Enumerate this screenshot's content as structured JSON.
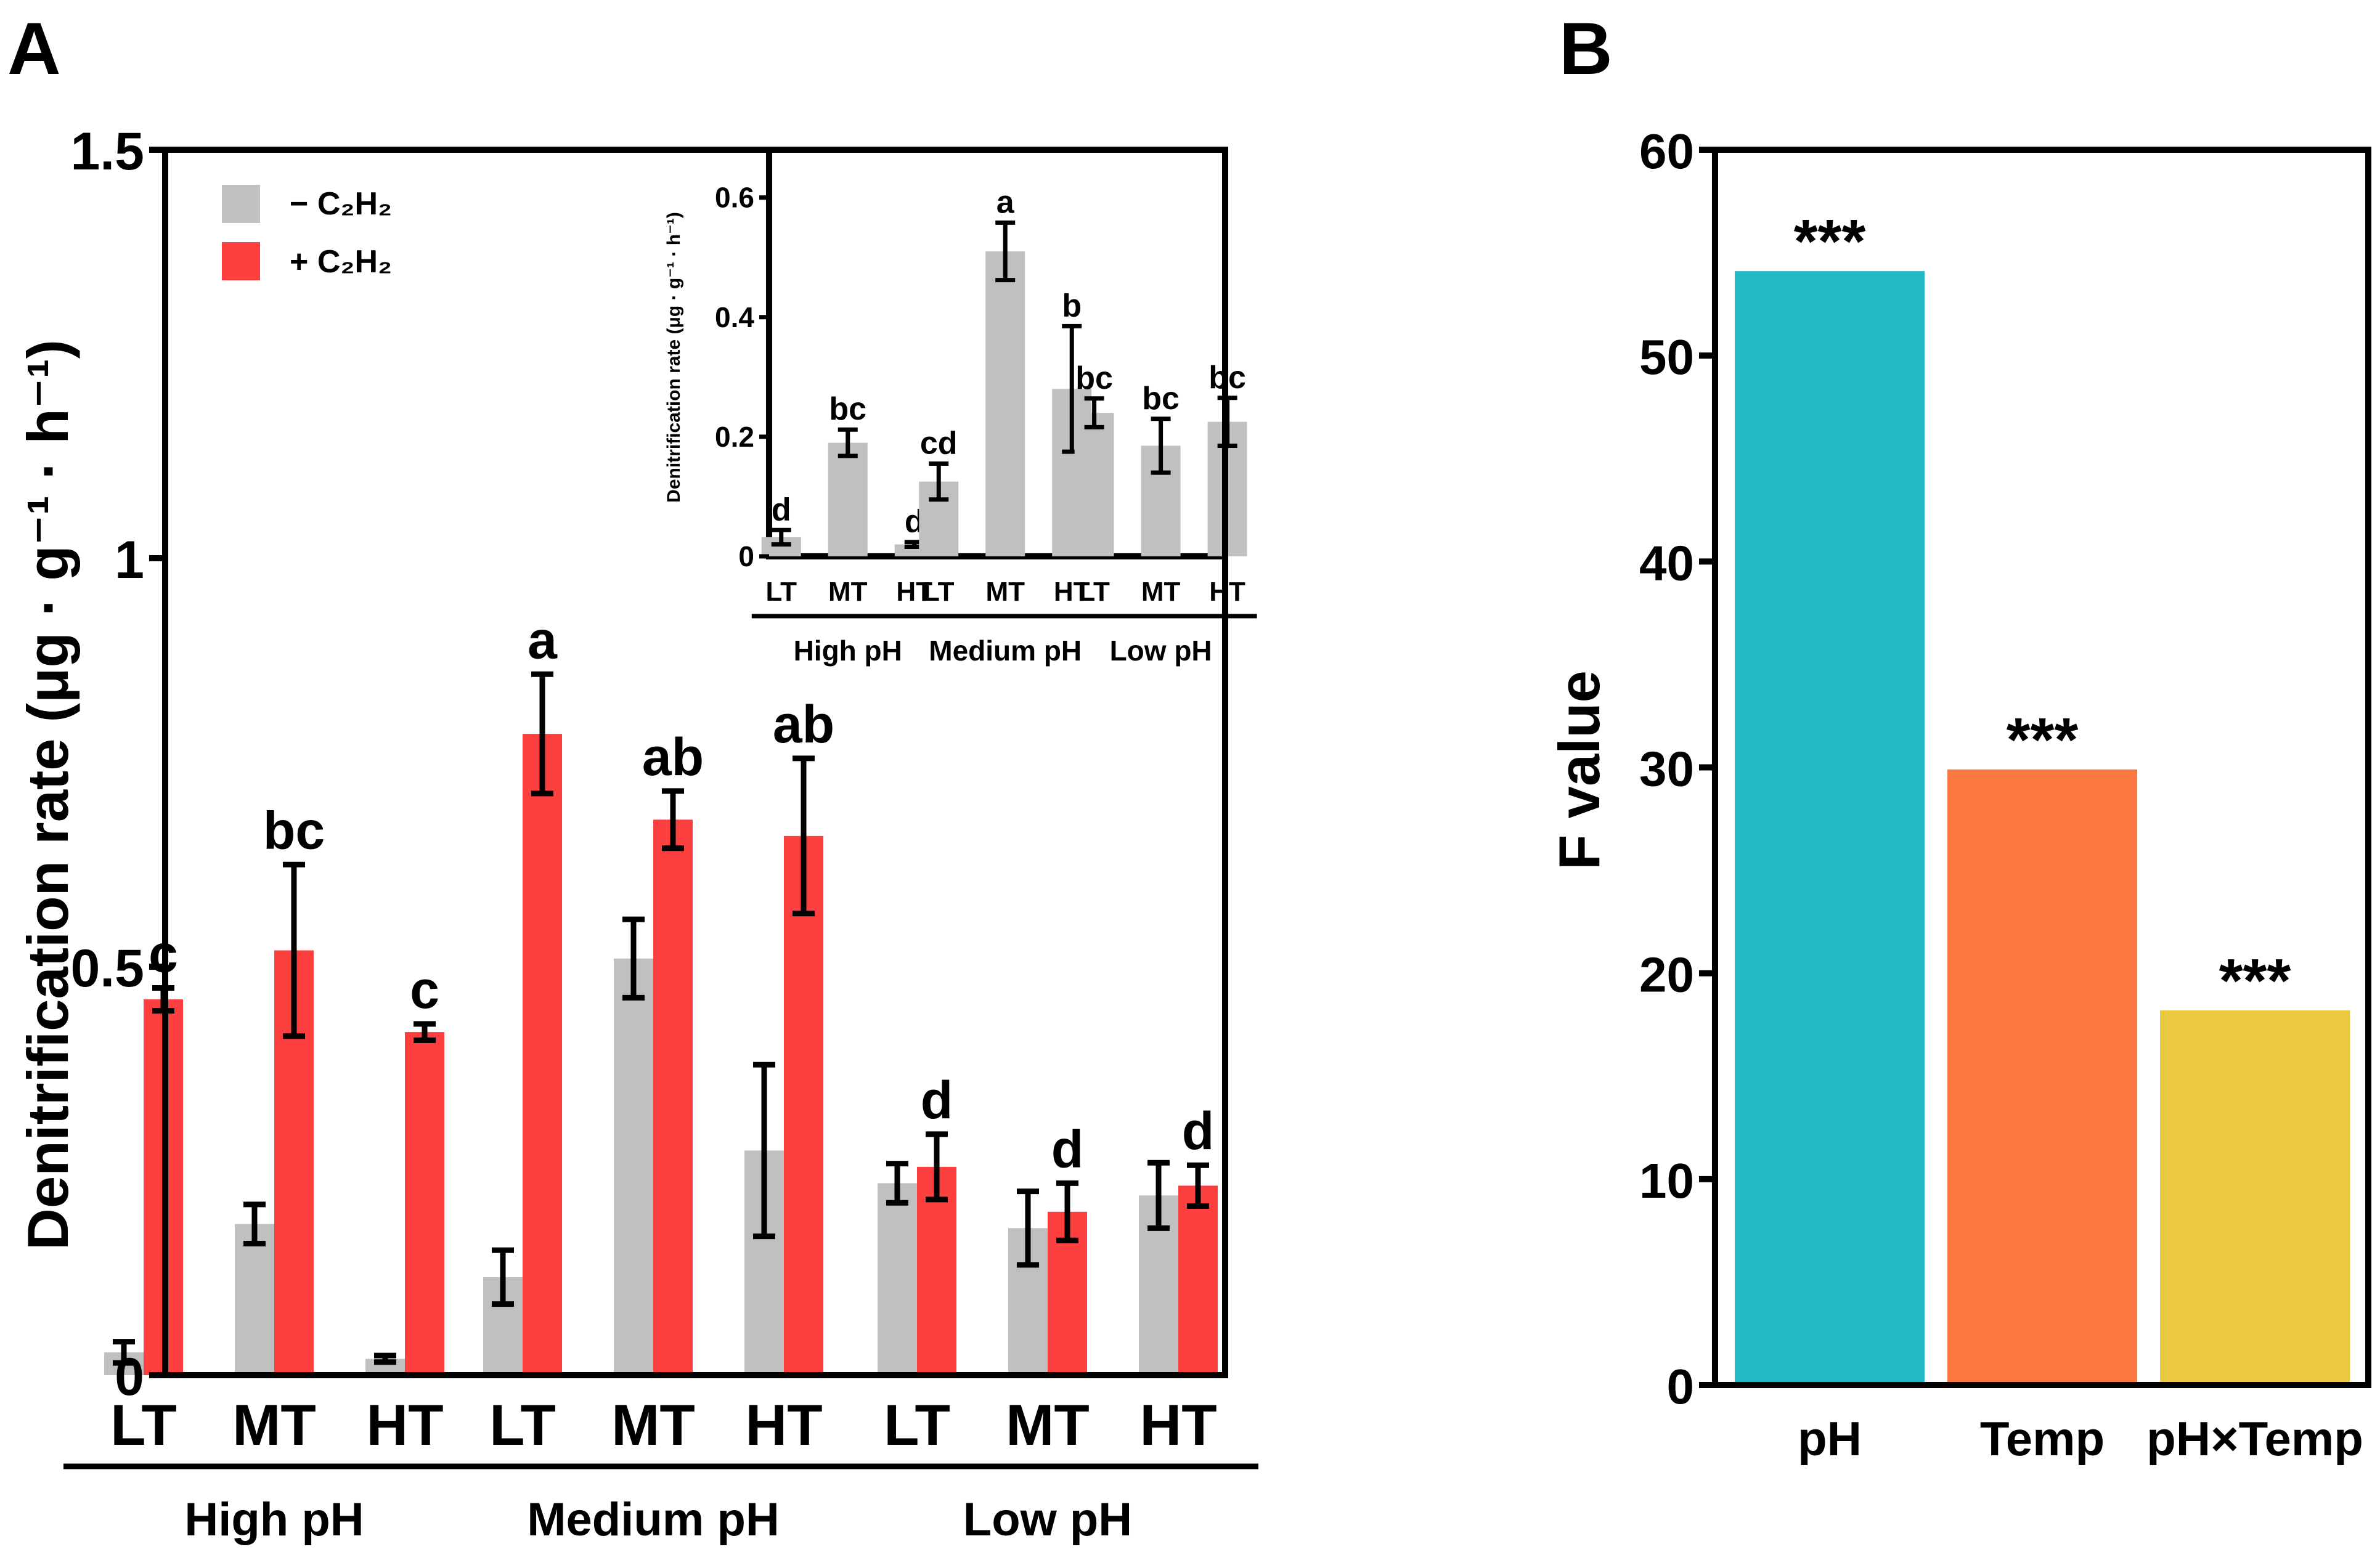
{
  "panels": {
    "a_label": "A",
    "b_label": "B"
  },
  "colors": {
    "minus": "#c0c0c0",
    "plus": "#fc4040",
    "b_pH": "#22b8c4",
    "b_temp": "#fa7840",
    "b_inter": "#eac840"
  },
  "chart_data": [
    {
      "id": "A",
      "type": "bar",
      "title": "",
      "ylabel": "Denitrification rate (μg · g⁻¹ · h⁻¹)",
      "ylim": [
        0,
        1.5
      ],
      "yticks": [
        0,
        0.5,
        1,
        1.5
      ],
      "ytick_labels": [
        "0",
        "0.5",
        "1",
        "1.5"
      ],
      "categories": [
        "LT",
        "MT",
        "HT",
        "LT",
        "MT",
        "HT",
        "LT",
        "MT",
        "HT"
      ],
      "groups": [
        {
          "label": "High pH",
          "start": 0,
          "end": 2
        },
        {
          "label": "Medium pH",
          "start": 3,
          "end": 5
        },
        {
          "label": "Low pH",
          "start": 6,
          "end": 8
        }
      ],
      "legend": {
        "position": "top-left",
        "minus": "− C₂H₂",
        "plus": "+ C₂H₂"
      },
      "series": [
        {
          "name": "− C₂H₂",
          "values": [
            0.028,
            0.185,
            0.02,
            0.12,
            0.51,
            0.275,
            0.235,
            0.18,
            0.22
          ],
          "errors": [
            0.013,
            0.024,
            0.004,
            0.033,
            0.048,
            0.105,
            0.024,
            0.045,
            0.04
          ],
          "letters": [
            "",
            "",
            "",
            "",
            "",
            "",
            "",
            "",
            ""
          ]
        },
        {
          "name": "+ C₂H₂",
          "values": [
            0.46,
            0.52,
            0.42,
            0.785,
            0.68,
            0.66,
            0.255,
            0.2,
            0.232
          ],
          "errors": [
            0.014,
            0.105,
            0.01,
            0.073,
            0.035,
            0.095,
            0.04,
            0.035,
            0.025
          ],
          "letters": [
            "c",
            "bc",
            "c",
            "a",
            "ab",
            "ab",
            "d",
            "d",
            "d"
          ]
        }
      ]
    },
    {
      "id": "A-inset",
      "type": "bar",
      "ylabel": "Denitrification rate (μg · g⁻¹ · h⁻¹)",
      "ylim": [
        0,
        0.68
      ],
      "yticks": [
        0,
        0.2,
        0.4,
        0.6
      ],
      "ytick_labels": [
        "0",
        "0.2",
        "0.4",
        "0.6"
      ],
      "categories": [
        "LT",
        "MT",
        "HT",
        "LT",
        "MT",
        "HT",
        "LT",
        "MT",
        "HT"
      ],
      "groups": [
        {
          "label": "High pH",
          "start": 0,
          "end": 2
        },
        {
          "label": "Medium pH",
          "start": 3,
          "end": 5
        },
        {
          "label": "Low pH",
          "start": 6,
          "end": 8
        }
      ],
      "values": [
        0.032,
        0.19,
        0.02,
        0.125,
        0.51,
        0.28,
        0.24,
        0.185,
        0.225
      ],
      "errors": [
        0.012,
        0.022,
        0.004,
        0.03,
        0.048,
        0.105,
        0.024,
        0.045,
        0.04
      ],
      "letters": [
        "d",
        "bc",
        "d",
        "cd",
        "a",
        "b",
        "bc",
        "bc",
        "bc"
      ]
    },
    {
      "id": "B",
      "type": "bar",
      "ylabel": "F value",
      "ylim": [
        0,
        60
      ],
      "yticks": [
        0,
        10,
        20,
        30,
        40,
        50,
        60
      ],
      "ytick_labels": [
        "0",
        "10",
        "20",
        "30",
        "40",
        "50",
        "60"
      ],
      "categories": [
        "pH",
        "Temp",
        "pH×Temp"
      ],
      "values": [
        54.1,
        29.9,
        18.2
      ],
      "annotations": [
        "***",
        "***",
        "***"
      ]
    }
  ]
}
